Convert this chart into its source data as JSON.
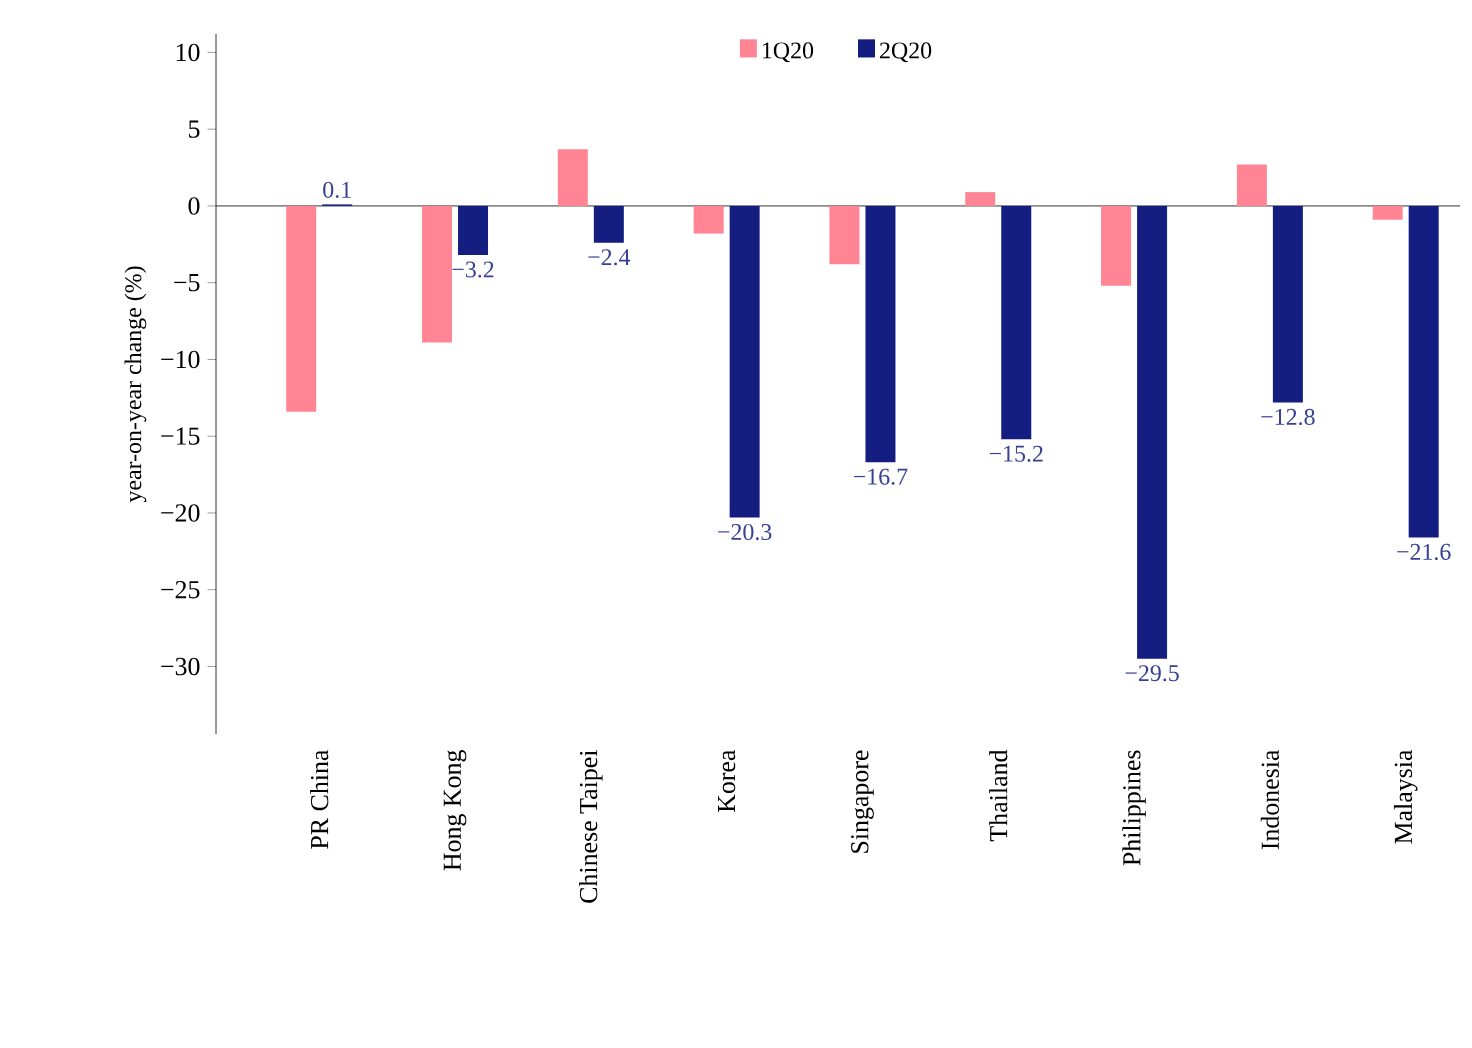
{
  "chart_data": {
    "type": "bar",
    "ylabel": "year-on-year change (%)",
    "categories": [
      "PR China",
      "Hong Kong",
      "Chinese Taipei",
      "Korea",
      "Singapore",
      "Thailand",
      "Philippines",
      "Indonesia",
      "Malaysia"
    ],
    "series": [
      {
        "name": "1Q20",
        "color": "#ff8595",
        "values": [
          -13.4,
          -8.9,
          3.7,
          -1.8,
          -3.8,
          0.9,
          -5.2,
          2.7,
          -0.9
        ]
      },
      {
        "name": "2Q20",
        "color": "#141e80",
        "values": [
          0.1,
          -3.2,
          -2.4,
          -20.3,
          -16.7,
          -15.2,
          -29.5,
          -12.8,
          -21.6
        ],
        "value_labels": [
          "0.1",
          "−3.2",
          "−2.4",
          "−20.3",
          "−16.7",
          "−15.2",
          "−29.5",
          "−12.8",
          "−21.6"
        ]
      }
    ],
    "ylim": [
      -34.4,
      11.2
    ],
    "yticks": [
      {
        "value": -30,
        "label": "−30"
      },
      {
        "value": -25,
        "label": "−25"
      },
      {
        "value": -20,
        "label": "−20"
      },
      {
        "value": -15,
        "label": "−15"
      },
      {
        "value": -10,
        "label": "−10"
      },
      {
        "value": -5,
        "label": "−5"
      },
      0,
      5,
      10
    ],
    "legend": "top"
  }
}
